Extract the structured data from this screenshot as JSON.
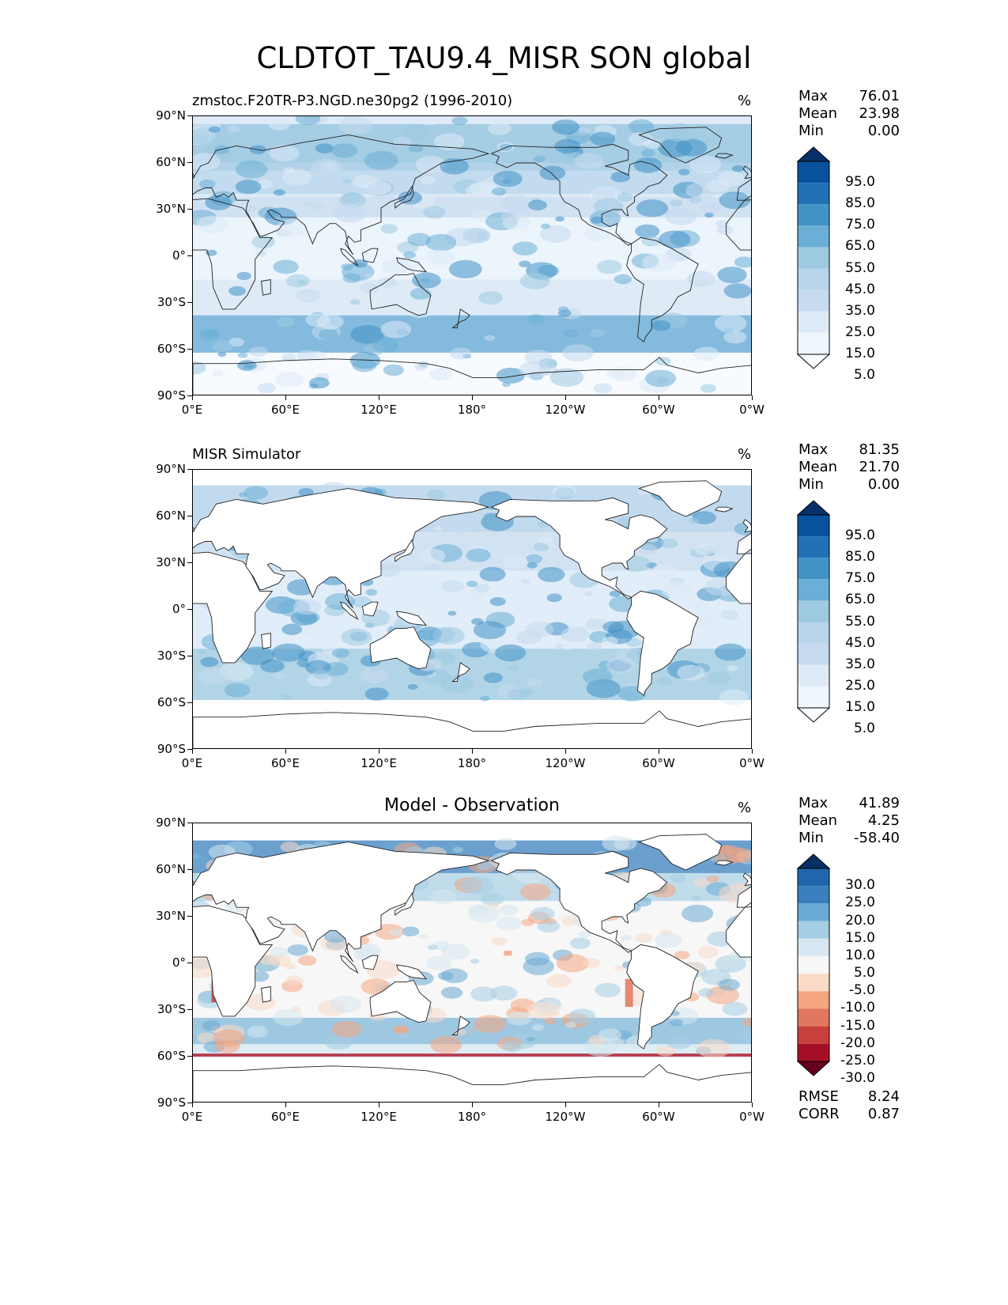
{
  "title": "CLDTOT_TAU9.4_MISR SON global",
  "axis": {
    "lat_ticks": [
      "90°N",
      "60°N",
      "30°N",
      "0°",
      "30°S",
      "60°S",
      "90°S"
    ],
    "lon_ticks": [
      "0°E",
      "60°E",
      "120°E",
      "180°",
      "120°W",
      "60°W",
      "0°W"
    ]
  },
  "panels": [
    {
      "title": "zmstoc.F20TR-P3.NGD.ne30pg2 (1996-2010)",
      "title_style": "left",
      "units": "%",
      "stats": [
        {
          "label": "Max",
          "value": "76.01"
        },
        {
          "label": "Mean",
          "value": "23.98"
        },
        {
          "label": "Min",
          "value": "0.00"
        }
      ],
      "colorbar": {
        "labels": [
          "95.0",
          "85.0",
          "75.0",
          "65.0",
          "55.0",
          "45.0",
          "35.0",
          "25.0",
          "15.0",
          "5.0"
        ],
        "colors": [
          "#08306b",
          "#08519c",
          "#2171b5",
          "#4292c6",
          "#6baed6",
          "#9ecae1",
          "#b7d4ea",
          "#c6dbef",
          "#deebf7",
          "#eff6fc",
          "#f7fbff"
        ]
      }
    },
    {
      "title": "MISR Simulator",
      "title_style": "left",
      "units": "%",
      "stats": [
        {
          "label": "Max",
          "value": "81.35"
        },
        {
          "label": "Mean",
          "value": "21.70"
        },
        {
          "label": "Min",
          "value": "0.00"
        }
      ],
      "colorbar": {
        "labels": [
          "95.0",
          "85.0",
          "75.0",
          "65.0",
          "55.0",
          "45.0",
          "35.0",
          "25.0",
          "15.0",
          "5.0"
        ],
        "colors": [
          "#08306b",
          "#08519c",
          "#2171b5",
          "#4292c6",
          "#6baed6",
          "#9ecae1",
          "#b7d4ea",
          "#c6dbef",
          "#deebf7",
          "#eff6fc",
          "#f7fbff"
        ]
      }
    },
    {
      "title": "Model - Observation",
      "title_style": "center",
      "units": "%",
      "stats": [
        {
          "label": "Max",
          "value": "41.89"
        },
        {
          "label": "Mean",
          "value": "4.25"
        },
        {
          "label": "Min",
          "value": "-58.40"
        }
      ],
      "colorbar": {
        "labels": [
          "30.0",
          "25.0",
          "20.0",
          "15.0",
          "10.0",
          "5.0",
          "-5.0",
          "-10.0",
          "-15.0",
          "-20.0",
          "-25.0",
          "-30.0"
        ],
        "colors": [
          "#053061",
          "#2166ac",
          "#3a7fbd",
          "#6aaad3",
          "#a5cde3",
          "#d6e7f1",
          "#f7f7f7",
          "#fadbc8",
          "#f4a582",
          "#e0775e",
          "#c8403c",
          "#a50f26",
          "#67001f"
        ]
      },
      "metrics": [
        {
          "label": "RMSE",
          "value": "8.24"
        },
        {
          "label": "CORR",
          "value": "0.87"
        }
      ]
    }
  ]
}
